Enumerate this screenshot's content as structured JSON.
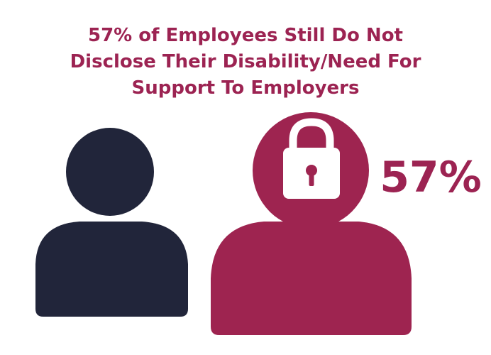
{
  "title_lines": [
    "57% of Employees Still Do Not",
    "Disclose Their Disability/Need For",
    "Support To Employers"
  ],
  "stat": "57%"
}
